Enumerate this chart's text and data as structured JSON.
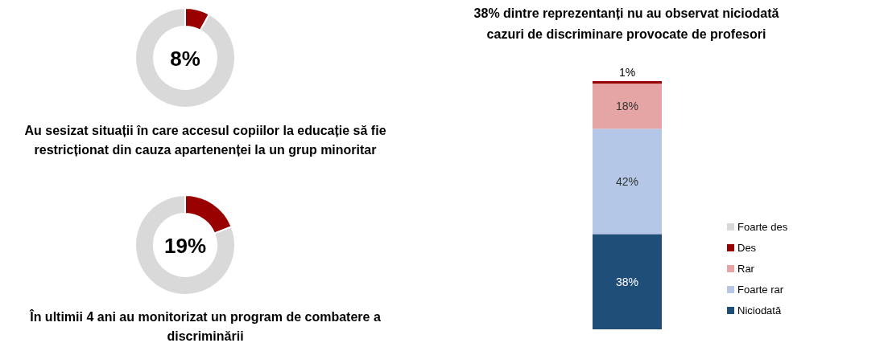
{
  "chart_data": [
    {
      "type": "donut",
      "title": "Au sesizat situații în care accesul copiilor la educație să fie restricționat din cauza apartenenței la un grup minoritar",
      "categories": [
        null,
        null
      ],
      "values": [
        8,
        92
      ],
      "colors": [
        "#990000",
        "#d9d9d9"
      ],
      "annotations": [
        "8%"
      ]
    },
    {
      "type": "donut",
      "title": "În ultimii 4 ani au monitorizat un program de combatere a discriminării",
      "categories": [
        null,
        null
      ],
      "values": [
        19,
        81
      ],
      "colors": [
        "#990000",
        "#d9d9d9"
      ],
      "annotations": [
        "19%"
      ]
    },
    {
      "type": "bar",
      "stacked": true,
      "title": "38% dintre reprezentanți nu au observat niciodată cazuri de discriminare provocate de profesori",
      "categories": [
        null
      ],
      "legend": "right",
      "series": [
        {
          "name": "Niciodată",
          "color": "#1f4e79",
          "values": [
            38
          ],
          "value_labels": [
            "38%"
          ]
        },
        {
          "name": "Foarte rar",
          "color": "#b4c7e7",
          "values": [
            42
          ],
          "value_labels": [
            "42%"
          ]
        },
        {
          "name": "Rar",
          "color": "#e6a5a5",
          "values": [
            18
          ],
          "value_labels": [
            "18%"
          ]
        },
        {
          "name": "Des",
          "color": "#990000",
          "values": [
            1
          ],
          "value_labels": [
            "1%"
          ]
        },
        {
          "name": "Foarte des",
          "color": "#d9d9d9",
          "values": [
            0
          ],
          "value_labels": [
            null
          ]
        }
      ]
    }
  ]
}
